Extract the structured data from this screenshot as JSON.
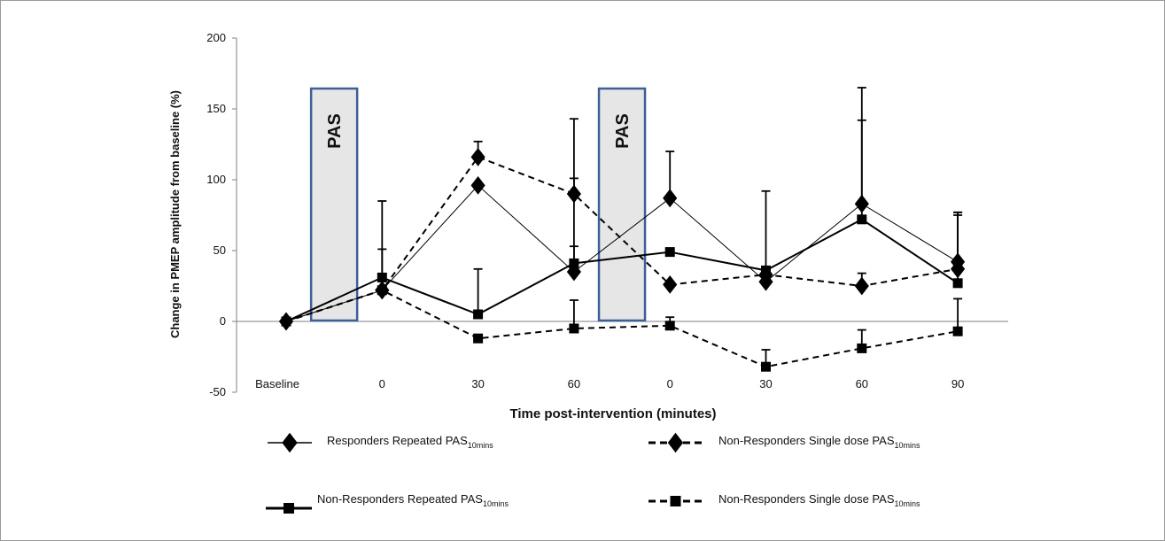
{
  "chart_data": {
    "type": "line",
    "ylabel": "Change in PMEP amplitude from baseline (%)",
    "xlabel": "Time post-intervention (minutes)",
    "ylim": [
      -50,
      200
    ],
    "yticks": [
      200,
      150,
      100,
      50,
      0,
      -50
    ],
    "categories": [
      "Baseline",
      "0",
      "30",
      "60",
      "0",
      "30",
      "60",
      "90"
    ],
    "grid": false,
    "interventions": [
      {
        "label": "PAS",
        "after_index": 0
      },
      {
        "label": "PAS",
        "after_index": 3
      }
    ],
    "series": [
      {
        "name": "Responders Repeated PAS",
        "name_sub": "10mins",
        "marker": "diamond",
        "line": "solid-thin",
        "values": [
          0,
          22,
          96,
          35,
          87,
          28,
          83,
          42
        ],
        "error": [
          0,
          29,
          0,
          108,
          33,
          0,
          82,
          33
        ]
      },
      {
        "name": "Non-Responders Repeated PAS",
        "name_sub": "10mins",
        "marker": "square",
        "line": "solid-thick",
        "values": [
          0,
          31,
          5,
          41,
          49,
          36,
          72,
          27
        ],
        "error": [
          0,
          54,
          32,
          12,
          0,
          56,
          70,
          50
        ]
      },
      {
        "name": "Non-Responders Single dose PAS",
        "name_sub": "10mins",
        "marker": "diamond",
        "line": "dashed",
        "values": [
          0,
          22,
          116,
          90,
          26,
          33,
          25,
          37
        ],
        "error": [
          0,
          0,
          11,
          11,
          0,
          0,
          9,
          40
        ]
      },
      {
        "name": "Non-Responders Single dose PAS",
        "name_sub": "10mins",
        "marker": "square",
        "line": "dashed",
        "values": [
          0,
          22,
          -12,
          -5,
          -3,
          -32,
          -19,
          -7
        ],
        "error": [
          0,
          0,
          0,
          20,
          6,
          12,
          13,
          23
        ]
      }
    ]
  }
}
